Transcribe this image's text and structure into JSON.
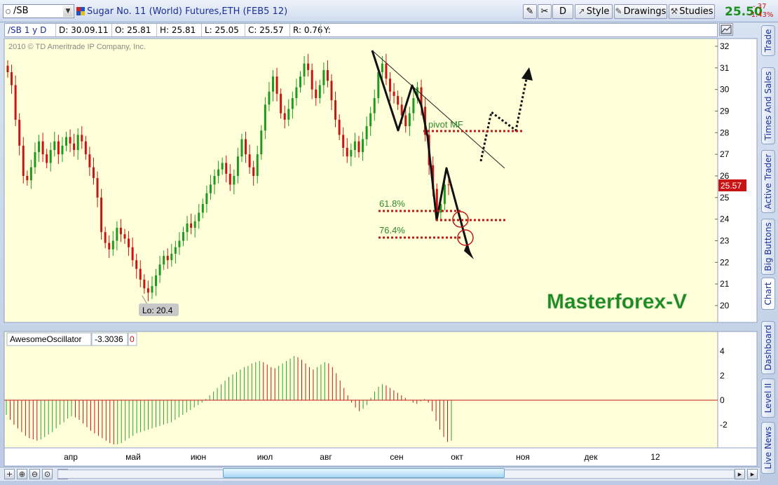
{
  "toolbar": {
    "symbol": "/SB",
    "description": "Sugar No. 11 (World)  Futures,ETH (FEB5 12)",
    "period_button": "D",
    "style_label": "Style",
    "drawings_label": "Drawings",
    "studies_label": "Studies",
    "last_price": "25.50",
    "change_abs": "-.37",
    "change_pct": "-1.43%"
  },
  "infobar": {
    "symbol_period": "/SB 1 y D",
    "date": "D: 30.09.11",
    "open": "O: 25.81",
    "high": "H: 25.81",
    "low": "L: 25.05",
    "close": "C: 25.57",
    "range": "R: 0.76",
    "y": "Y:"
  },
  "watermark_copyright": "2010 © TD Ameritrade IP Company, Inc.",
  "brand_text": "Masterforex-V",
  "annotations": {
    "pivot": "pivot MF",
    "fib618": "61.8%",
    "fib764": "76.4%",
    "low_label": "Lo: 20.4",
    "current_price_tag": "25.57"
  },
  "oscillator": {
    "name": "AwesomeOscillator",
    "value": "-3.3036",
    "zero": "0"
  },
  "side_tabs": [
    "Trade",
    "Times And Sales",
    "Active Trader",
    "Big Buttons",
    "Chart",
    "Dashboard",
    "Level II",
    "Live News"
  ],
  "colors": {
    "chart_bg": "#ffffd9",
    "up": "#1f9a1f",
    "down": "#c81414",
    "osc_up": "#2ea02e",
    "osc_down": "#c01818",
    "brand": "#1d8a1d",
    "price_tag": "#c81414"
  },
  "chart_data": [
    {
      "type": "candlestick",
      "title": "",
      "x_tick_labels": [
        "апр",
        "май",
        "июн",
        "июл",
        "авг",
        "сен",
        "окт",
        "ноя",
        "дек",
        "12"
      ],
      "y_tick_labels": [
        "20",
        "21",
        "22",
        "23",
        "24",
        "25",
        "26",
        "27",
        "28",
        "29",
        "30",
        "31",
        "32"
      ],
      "ylim": [
        19.5,
        32.4
      ],
      "grid": false,
      "period": "1 y D",
      "last_close": 25.57,
      "low_marker": 20.4,
      "levels": [
        {
          "name": "pivot MF",
          "value": 28.05
        },
        {
          "name": "61.8%",
          "value": 24.4
        },
        {
          "name": "76.4%",
          "value": 23.2
        }
      ],
      "closes": [
        30.8,
        30.2,
        28.6,
        27.4,
        26.0,
        25.8,
        26.4,
        27.1,
        27.6,
        27.0,
        26.6,
        27.2,
        27.6,
        27.0,
        27.4,
        27.8,
        27.5,
        27.2,
        27.9,
        27.6,
        27.0,
        26.4,
        25.9,
        25.0,
        23.4,
        22.9,
        22.6,
        23.0,
        23.6,
        23.3,
        23.1,
        22.7,
        22.1,
        21.7,
        21.2,
        20.8,
        20.6,
        20.9,
        21.4,
        21.9,
        22.3,
        22.1,
        22.4,
        22.7,
        23.0,
        23.4,
        23.8,
        23.6,
        23.9,
        24.3,
        24.7,
        25.2,
        25.6,
        26.0,
        26.3,
        26.6,
        26.1,
        25.6,
        26.0,
        26.9,
        27.7,
        27.0,
        26.4,
        26.0,
        27.0,
        28.1,
        29.3,
        29.9,
        30.6,
        29.8,
        28.9,
        28.6,
        29.1,
        29.6,
        30.1,
        30.6,
        31.2,
        30.9,
        30.0,
        29.6,
        30.2,
        30.9,
        30.4,
        29.5,
        28.6,
        27.9,
        27.3,
        26.9,
        27.2,
        27.6,
        27.1,
        27.7,
        28.3,
        28.9,
        29.6,
        30.8,
        31.2,
        30.5,
        29.9,
        29.7,
        29.3,
        28.8,
        28.3,
        28.9,
        29.6,
        30.1,
        29.2,
        27.9,
        26.5,
        25.4,
        24.3,
        24.7,
        25.6,
        25.57
      ],
      "x_pixel_hint": "daily bars from mid-March to 30.09.11"
    },
    {
      "type": "bar",
      "title": "AwesomeOscillator",
      "value": -3.3036,
      "y_tick_labels": [
        "-2",
        "0",
        "2",
        "4"
      ],
      "ylim": [
        -3.8,
        4.3
      ],
      "values": [
        -1.2,
        -1.6,
        -2.0,
        -2.3,
        -2.6,
        -2.9,
        -3.1,
        -3.2,
        -3.3,
        -3.2,
        -3.0,
        -2.8,
        -2.6,
        -2.3,
        -2.0,
        -1.8,
        -1.5,
        -1.3,
        -1.4,
        -1.6,
        -1.9,
        -2.2,
        -2.5,
        -2.7,
        -2.9,
        -3.1,
        -3.3,
        -3.5,
        -3.6,
        -3.6,
        -3.5,
        -3.3,
        -3.1,
        -2.9,
        -2.7,
        -2.6,
        -2.5,
        -2.4,
        -2.3,
        -2.2,
        -2.1,
        -2.0,
        -1.9,
        -1.8,
        -1.6,
        -1.4,
        -1.2,
        -1.0,
        -0.8,
        -0.6,
        -0.4,
        -0.2,
        0.1,
        0.4,
        0.7,
        1.0,
        1.3,
        1.6,
        1.9,
        2.1,
        2.3,
        2.5,
        2.7,
        2.8,
        3.0,
        3.1,
        3.2,
        3.1,
        2.9,
        2.7,
        2.6,
        2.8,
        3.0,
        3.2,
        3.4,
        3.6,
        3.5,
        3.3,
        3.0,
        2.7,
        2.5,
        2.7,
        2.9,
        3.1,
        3.0,
        2.7,
        2.2,
        1.6,
        1.0,
        0.4,
        -0.2,
        -0.6,
        -0.9,
        -0.7,
        -0.4,
        0.2,
        0.7,
        1.1,
        1.3,
        1.2,
        1.0,
        0.8,
        0.6,
        0.4,
        0.2,
        0.0,
        -0.2,
        -0.3,
        -0.1,
        0.1,
        -0.2,
        -0.9,
        -1.7,
        -2.4,
        -3.0,
        -3.4,
        -3.3
      ]
    }
  ]
}
